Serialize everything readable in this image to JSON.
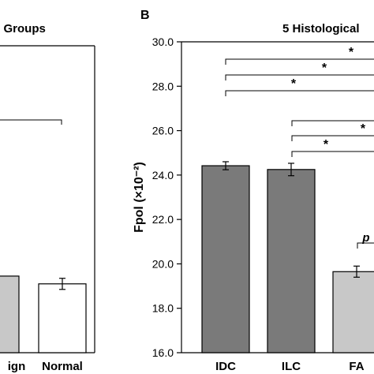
{
  "chart_data": [
    {
      "type": "bar",
      "title": "c Groups",
      "categories": [
        "ign",
        "Normal"
      ],
      "values": [
        19.45,
        19.1
      ],
      "errors": [
        null,
        0.25
      ],
      "bar_colors": [
        "#c8c8c8",
        "#ffffff"
      ],
      "significance": [
        {
          "label": "",
          "from": "ign",
          "to": "Normal"
        }
      ]
    },
    {
      "type": "bar",
      "panel_label": "B",
      "title": "5 Histological",
      "ylabel": "Fpol (×10⁻²)",
      "ylim": [
        16.0,
        30.0
      ],
      "yticks": [
        "16.0",
        "18.0",
        "20.0",
        "22.0",
        "24.0",
        "26.0",
        "28.0",
        "30.0"
      ],
      "categories": [
        "IDC",
        "ILC",
        "FA"
      ],
      "values": [
        24.42,
        24.25,
        19.65
      ],
      "errors": [
        0.18,
        0.28,
        0.25
      ],
      "bar_colors": [
        "#7a7a7a",
        "#7a7a7a",
        "#c8c8c8"
      ],
      "significance": [
        {
          "label": "*",
          "from": "IDC",
          "to": null
        },
        {
          "label": "*",
          "from": "IDC",
          "to": null
        },
        {
          "label": "*",
          "from": "IDC",
          "to": null
        },
        {
          "label": "",
          "from": "ILC",
          "to": null
        },
        {
          "label": "*",
          "from": "ILC",
          "to": null
        },
        {
          "label": "*",
          "from": "ILC",
          "to": null
        },
        {
          "label": "p",
          "from": "FA",
          "to": null
        }
      ]
    }
  ]
}
